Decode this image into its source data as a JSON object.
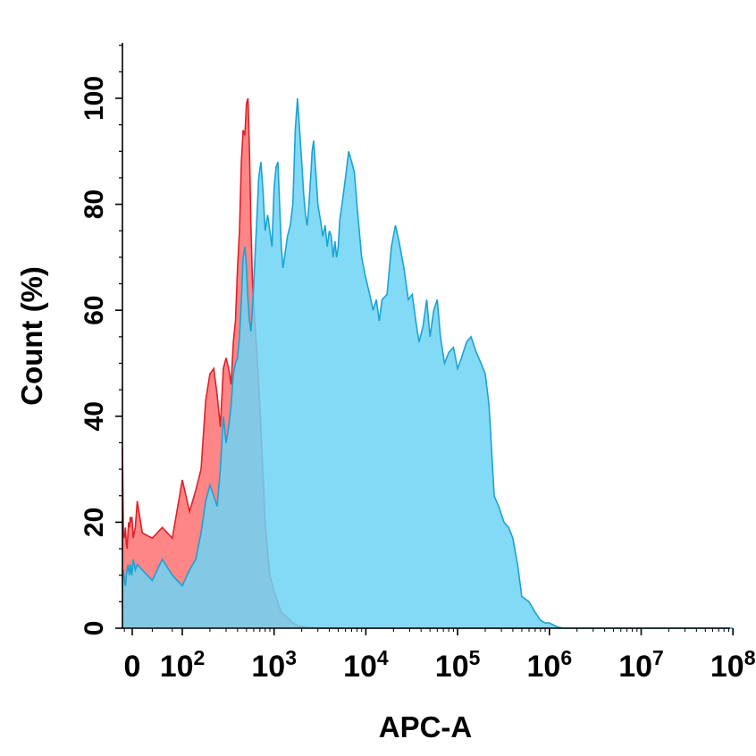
{
  "chart_data": {
    "type": "area",
    "title": "",
    "xlabel": "APC-A",
    "ylabel": "Count  (%)",
    "x_scale": "biexponential",
    "ylim": [
      0,
      100
    ],
    "grid": false,
    "legend": "none",
    "x_tick_labels": [
      {
        "base": "0",
        "exp": ""
      },
      {
        "base": "10",
        "exp": "2"
      },
      {
        "base": "10",
        "exp": "3"
      },
      {
        "base": "10",
        "exp": "4"
      },
      {
        "base": "10",
        "exp": "5"
      },
      {
        "base": "10",
        "exp": "6"
      },
      {
        "base": "10",
        "exp": "7"
      },
      {
        "base": "10",
        "exp": "8"
      }
    ],
    "y_tick_labels": [
      "0",
      "20",
      "40",
      "60",
      "80",
      "100"
    ],
    "series": [
      {
        "color_fill": "#ff6b6b",
        "color_line": "#e0202a",
        "fill_opacity": 0.82,
        "points": [
          [
            -50,
            34
          ],
          [
            -45,
            18
          ],
          [
            -40,
            17
          ],
          [
            -35,
            19
          ],
          [
            -30,
            16
          ],
          [
            -26,
            15
          ],
          [
            -22,
            18
          ],
          [
            -18,
            20
          ],
          [
            -14,
            19
          ],
          [
            -10,
            21
          ],
          [
            -6,
            20
          ],
          [
            -2,
            21
          ],
          [
            2,
            17
          ],
          [
            6,
            19
          ],
          [
            10,
            24
          ],
          [
            20,
            18
          ],
          [
            40,
            17
          ],
          [
            60,
            19
          ],
          [
            80,
            17
          ],
          [
            100,
            28
          ],
          [
            120,
            22
          ],
          [
            140,
            26
          ],
          [
            160,
            30
          ],
          [
            180,
            43
          ],
          [
            200,
            48
          ],
          [
            220,
            49
          ],
          [
            240,
            44
          ],
          [
            260,
            38
          ],
          [
            280,
            49
          ],
          [
            300,
            51
          ],
          [
            320,
            49
          ],
          [
            340,
            46
          ],
          [
            360,
            54
          ],
          [
            380,
            58
          ],
          [
            400,
            68
          ],
          [
            420,
            75
          ],
          [
            440,
            88
          ],
          [
            460,
            94
          ],
          [
            480,
            93
          ],
          [
            500,
            99
          ],
          [
            520,
            100
          ],
          [
            540,
            90
          ],
          [
            560,
            76
          ],
          [
            580,
            66
          ],
          [
            600,
            61
          ],
          [
            650,
            52
          ],
          [
            700,
            42
          ],
          [
            800,
            20
          ],
          [
            900,
            10
          ],
          [
            1000,
            7
          ],
          [
            1200,
            3
          ],
          [
            1400,
            2
          ],
          [
            1600,
            1
          ],
          [
            1800,
            0.5
          ],
          [
            2000,
            0.3
          ],
          [
            3000,
            0
          ],
          [
            1000000,
            0
          ]
        ]
      },
      {
        "color_fill": "#6dd3f5",
        "color_line": "#1aa3d4",
        "fill_opacity": 0.85,
        "points": [
          [
            -50,
            10
          ],
          [
            -45,
            11
          ],
          [
            -40,
            9
          ],
          [
            -35,
            8
          ],
          [
            -30,
            10
          ],
          [
            -26,
            11
          ],
          [
            -22,
            12
          ],
          [
            -18,
            11
          ],
          [
            -14,
            10
          ],
          [
            -10,
            12
          ],
          [
            -6,
            11
          ],
          [
            -2,
            10
          ],
          [
            2,
            13
          ],
          [
            6,
            11
          ],
          [
            10,
            12
          ],
          [
            20,
            11
          ],
          [
            40,
            9
          ],
          [
            60,
            13
          ],
          [
            80,
            10
          ],
          [
            100,
            8
          ],
          [
            120,
            11
          ],
          [
            140,
            13
          ],
          [
            160,
            18
          ],
          [
            180,
            24
          ],
          [
            200,
            27
          ],
          [
            220,
            25
          ],
          [
            240,
            23
          ],
          [
            260,
            30
          ],
          [
            280,
            40
          ],
          [
            300,
            35
          ],
          [
            320,
            38
          ],
          [
            340,
            42
          ],
          [
            360,
            48
          ],
          [
            380,
            50
          ],
          [
            400,
            51
          ],
          [
            420,
            55
          ],
          [
            440,
            62
          ],
          [
            460,
            70
          ],
          [
            480,
            72
          ],
          [
            500,
            68
          ],
          [
            520,
            62
          ],
          [
            540,
            58
          ],
          [
            560,
            56
          ],
          [
            580,
            60
          ],
          [
            600,
            65
          ],
          [
            640,
            75
          ],
          [
            680,
            85
          ],
          [
            720,
            88
          ],
          [
            760,
            82
          ],
          [
            800,
            75
          ],
          [
            850,
            78
          ],
          [
            900,
            75
          ],
          [
            950,
            72
          ],
          [
            1000,
            83
          ],
          [
            1050,
            87
          ],
          [
            1100,
            88
          ],
          [
            1150,
            80
          ],
          [
            1200,
            72
          ],
          [
            1250,
            68
          ],
          [
            1300,
            70
          ],
          [
            1400,
            74
          ],
          [
            1500,
            76
          ],
          [
            1600,
            80
          ],
          [
            1700,
            94
          ],
          [
            1800,
            100
          ],
          [
            1900,
            94
          ],
          [
            2000,
            88
          ],
          [
            2100,
            82
          ],
          [
            2200,
            78
          ],
          [
            2300,
            76
          ],
          [
            2400,
            80
          ],
          [
            2500,
            85
          ],
          [
            2600,
            90
          ],
          [
            2700,
            92
          ],
          [
            2800,
            88
          ],
          [
            2900,
            84
          ],
          [
            3000,
            80
          ],
          [
            3200,
            77
          ],
          [
            3400,
            74
          ],
          [
            3600,
            76
          ],
          [
            3800,
            72
          ],
          [
            4000,
            75
          ],
          [
            4200,
            74
          ],
          [
            4400,
            70
          ],
          [
            4600,
            73
          ],
          [
            4800,
            70
          ],
          [
            5000,
            72
          ],
          [
            5200,
            77
          ],
          [
            5500,
            80
          ],
          [
            6000,
            85
          ],
          [
            6500,
            90
          ],
          [
            7000,
            88
          ],
          [
            7500,
            86
          ],
          [
            8000,
            80
          ],
          [
            9000,
            70
          ],
          [
            10000,
            66
          ],
          [
            11000,
            63
          ],
          [
            12000,
            60
          ],
          [
            13000,
            62
          ],
          [
            14000,
            58
          ],
          [
            15000,
            62
          ],
          [
            17000,
            63
          ],
          [
            19000,
            72
          ],
          [
            21000,
            76
          ],
          [
            23000,
            73
          ],
          [
            26000,
            68
          ],
          [
            29000,
            62
          ],
          [
            32000,
            63
          ],
          [
            35000,
            58
          ],
          [
            38000,
            54
          ],
          [
            42000,
            57
          ],
          [
            46000,
            62
          ],
          [
            50000,
            55
          ],
          [
            55000,
            60
          ],
          [
            60000,
            62
          ],
          [
            65000,
            55
          ],
          [
            72000,
            50
          ],
          [
            80000,
            52
          ],
          [
            90000,
            53
          ],
          [
            100000,
            49
          ],
          [
            110000,
            51
          ],
          [
            125000,
            54
          ],
          [
            140000,
            55
          ],
          [
            160000,
            52
          ],
          [
            180000,
            50
          ],
          [
            200000,
            48
          ],
          [
            220000,
            42
          ],
          [
            250000,
            25
          ],
          [
            280000,
            23
          ],
          [
            320000,
            20
          ],
          [
            360000,
            19
          ],
          [
            400000,
            17
          ],
          [
            450000,
            12
          ],
          [
            500000,
            6
          ],
          [
            600000,
            5
          ],
          [
            700000,
            3
          ],
          [
            800000,
            1.5
          ],
          [
            900000,
            1
          ],
          [
            1000000,
            1
          ],
          [
            1200000,
            0.3
          ],
          [
            1400000,
            0
          ],
          [
            100000000,
            0
          ]
        ]
      }
    ]
  }
}
